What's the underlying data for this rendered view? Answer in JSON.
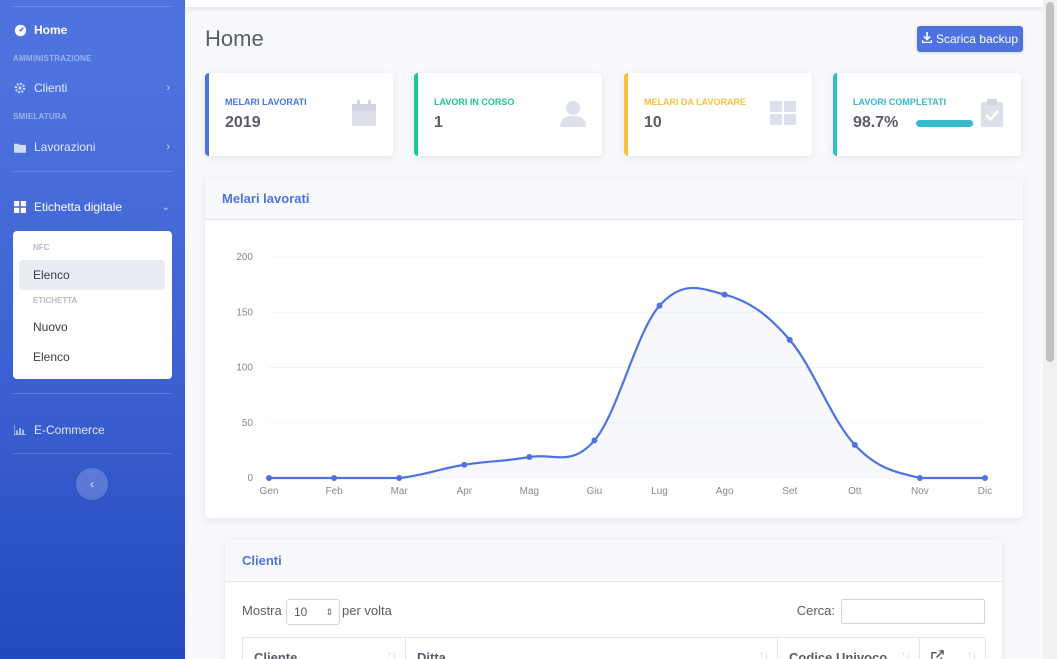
{
  "sidebar": {
    "home_label": "Home",
    "section_admin": "AMMINISTRAZIONE",
    "clienti_label": "Clienti",
    "section_smielatura": "SMIELATURA",
    "lavorazioni_label": "Lavorazioni",
    "etichetta_label": "Etichetta digitale",
    "submenu": {
      "heading_nfc": "NFC",
      "elenco1": "Elenco",
      "heading_etichetta": "ETICHETTA",
      "nuovo": "Nuovo",
      "elenco2": "Elenco"
    },
    "ecommerce_label": "E-Commerce",
    "toggle_glyph": "‹"
  },
  "page": {
    "title": "Home",
    "backup_label": "Scarica backup"
  },
  "kpis": [
    {
      "label": "MELARI LAVORATI",
      "value": "2019",
      "color": "#4e73df",
      "icon": "calendar-icon"
    },
    {
      "label": "LAVORI IN CORSO",
      "value": "1",
      "color": "#1cc88a",
      "icon": "user-icon"
    },
    {
      "label": "MELARI DA LAVORARE",
      "value": "10",
      "color": "#f6c23e",
      "icon": "grid-icon"
    },
    {
      "label": "LAVORI COMPLETATI",
      "value": "98.7%",
      "progress": 0.987,
      "color": "#36b9cc",
      "icon": "clipboard-check-icon"
    }
  ],
  "chart_card": {
    "title": "Melari lavorati"
  },
  "chart_data": {
    "type": "line",
    "categories": [
      "Gen",
      "Feb",
      "Mar",
      "Apr",
      "Mag",
      "Giu",
      "Lug",
      "Ago",
      "Set",
      "Ott",
      "Nov",
      "Dic"
    ],
    "values": [
      0,
      0,
      0,
      12,
      19,
      34,
      156,
      166,
      125,
      30,
      0,
      0
    ],
    "yticks": [
      0,
      50,
      100,
      150,
      200
    ],
    "ylim": [
      0,
      200
    ],
    "color": "#4e73df",
    "grid": true
  },
  "table_card": {
    "title": "Clienti",
    "show_label": "Mostra",
    "length_value": "10",
    "length_suffix": "per volta",
    "search_label": "Cerca:",
    "columns": [
      "Cliente",
      "Ditta",
      "Codice Univoco",
      ""
    ]
  }
}
